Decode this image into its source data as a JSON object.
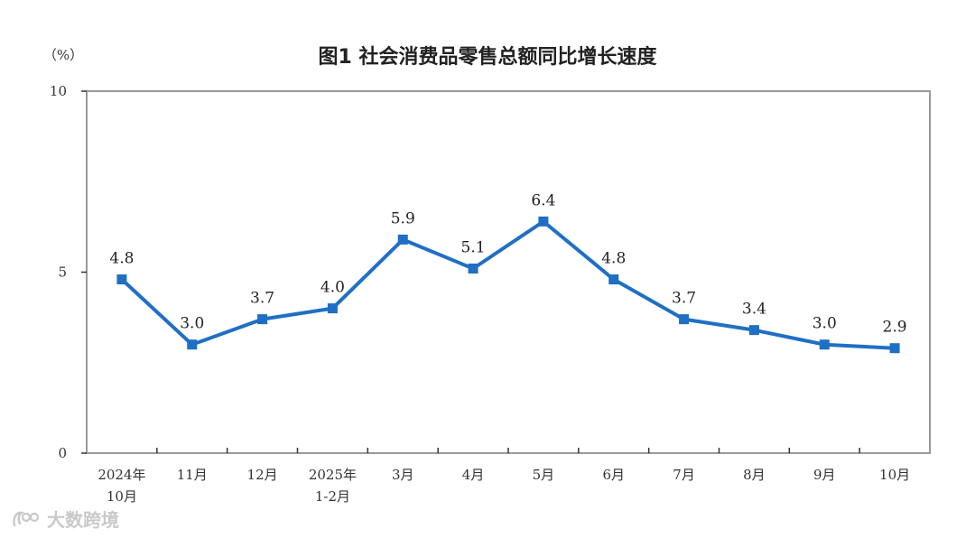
{
  "chart_data": {
    "type": "line",
    "title": "图1  社会消费品零售总额同比增长速度",
    "ylabel": "（%）",
    "ylim": [
      0,
      10
    ],
    "yticks": [
      "0",
      "5",
      "10"
    ],
    "categories": [
      [
        "2024年",
        "10月"
      ],
      [
        "11月"
      ],
      [
        "12月"
      ],
      [
        "2025年",
        "1-2月"
      ],
      [
        "3月"
      ],
      [
        "4月"
      ],
      [
        "5月"
      ],
      [
        "6月"
      ],
      [
        "7月"
      ],
      [
        "8月"
      ],
      [
        "9月"
      ],
      [
        "10月"
      ]
    ],
    "series": [
      {
        "values": [
          4.8,
          3.0,
          3.7,
          4.0,
          5.9,
          5.1,
          6.4,
          4.8,
          3.7,
          3.4,
          3.0,
          2.9
        ],
        "labels": [
          "4.8",
          "3.0",
          "3.7",
          "4.0",
          "5.9",
          "5.1",
          "6.4",
          "4.8",
          "3.7",
          "3.4",
          "3.0",
          "2.9"
        ],
        "color": "#1f6fc5"
      }
    ],
    "grid": false,
    "frame_color": "#999999"
  },
  "watermark": {
    "text": "大数跨境"
  }
}
